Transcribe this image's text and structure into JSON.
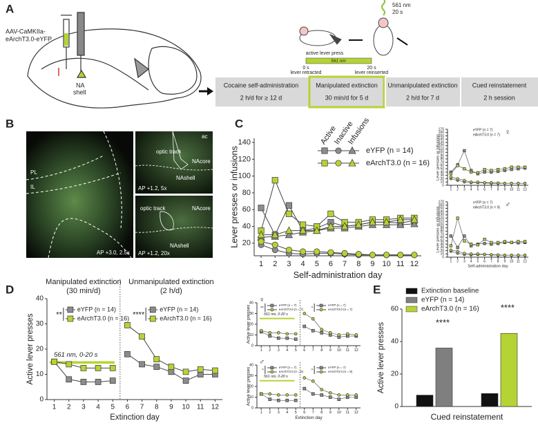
{
  "panel_labels": [
    "A",
    "B",
    "C",
    "D",
    "E"
  ],
  "panel_a": {
    "virus": [
      "AAV-CaMKIIa-",
      "eArchT3.0-eYFP"
    ],
    "target": [
      "NA",
      "shell"
    ],
    "laser": [
      "561 nm",
      "20 s"
    ],
    "active_press": "active lever press",
    "light_bar": "561 nm",
    "t0": "0 s",
    "t0_event": "lever retracted",
    "t20": "20 s",
    "t20_event": "lever reinserted",
    "stages": [
      {
        "name": "Cocaine self-administration",
        "detail": "2 h/d for ≥ 12 d"
      },
      {
        "name": "Manipulated extinction",
        "detail": "30 min/d for 5 d"
      },
      {
        "name": "Unmanipulated extinction",
        "detail": "2 h/d for 7 d"
      },
      {
        "name": "Cued reinstatement",
        "detail": "2 h session"
      }
    ]
  },
  "panel_b": {
    "images": [
      {
        "labels": [
          "PL",
          "IL"
        ],
        "caption": "AP +3.0, 2.5x"
      },
      {
        "labels": [
          "ac",
          "optic track",
          "NAcore",
          "NAshell"
        ],
        "caption": "AP +1.2, 5x"
      },
      {
        "labels": [
          "optic track",
          "NAcore",
          "NAshell"
        ],
        "caption": "AP +1.2, 20x"
      }
    ]
  },
  "chart_data": [
    {
      "type": "line",
      "xlabel": "Self-administration day",
      "ylabel": "Lever presses or infusions",
      "x": [
        1,
        2,
        3,
        4,
        5,
        6,
        7,
        8,
        9,
        10,
        11,
        12
      ],
      "xlim": [
        0.5,
        12.5
      ],
      "ylim": [
        5,
        145
      ],
      "yticks": [
        20,
        40,
        60,
        80,
        100,
        120,
        140
      ],
      "measures": [
        "Active",
        "Inactive",
        "Infusions"
      ],
      "markers": [
        "square",
        "circle",
        "triangle"
      ],
      "series": [
        {
          "name": "eYFP (n = 14)",
          "color": "#8c8c8c",
          "values": [
            [
              62,
              30,
              65,
              35,
              38,
              45,
              40,
              42,
              45,
              45,
              44,
              47
            ],
            [
              18,
              12,
              8,
              7,
              8,
              8,
              7,
              6,
              6,
              6,
              6,
              6
            ],
            [
              27,
              28,
              30,
              33,
              35,
              38,
              38,
              40,
              42,
              42,
              42,
              43
            ]
          ]
        },
        {
          "name": "eArchT3.0 (n = 16)",
          "color": "#b5d334",
          "values": [
            [
              35,
              95,
              55,
              42,
              40,
              55,
              45,
              45,
              48,
              48,
              50,
              50
            ],
            [
              22,
              18,
              12,
              10,
              10,
              9,
              8,
              7,
              6,
              6,
              6,
              6
            ],
            [
              30,
              30,
              35,
              35,
              35,
              40,
              40,
              42,
              45,
              45,
              48,
              48
            ]
          ]
        }
      ]
    },
    {
      "type": "line",
      "symbol": "♀",
      "ylabel": "Lever presses or infusions",
      "x": [
        1,
        2,
        3,
        4,
        5,
        6,
        7,
        8,
        9,
        10,
        11,
        12
      ],
      "xlim": [
        0.5,
        12.5
      ],
      "ylim": [
        0,
        170
      ],
      "yticks": [
        0,
        10,
        20,
        30,
        40,
        50,
        60,
        70,
        80,
        90,
        100,
        110,
        120,
        130,
        140,
        150,
        160,
        170
      ],
      "markers": [
        "square",
        "circle"
      ],
      "series": [
        {
          "name": "eYFP (n = 7)",
          "color": "#8c8c8c",
          "values": [
            [
              40,
              62,
              105,
              45,
              35,
              40,
              40,
              42,
              45,
              48,
              50,
              52
            ],
            [
              20,
              15,
              10,
              8,
              8,
              7,
              6,
              6,
              6,
              6,
              6,
              6
            ]
          ]
        },
        {
          "name": "eArchT3.0 (n = 7)",
          "color": "#b5d334",
          "values": [
            [
              35,
              60,
              50,
              40,
              38,
              48,
              45,
              48,
              50,
              55,
              55,
              55
            ],
            [
              25,
              20,
              15,
              10,
              10,
              8,
              8,
              7,
              6,
              6,
              6,
              6
            ]
          ]
        }
      ]
    },
    {
      "type": "line",
      "symbol": "♂",
      "xlabel": "Self-administration day",
      "ylabel": "Lever presses or infusions",
      "x": [
        1,
        2,
        3,
        4,
        5,
        6,
        7,
        8,
        9,
        10,
        11,
        12
      ],
      "xlim": [
        0.5,
        12.5
      ],
      "ylim": [
        0,
        170
      ],
      "yticks": [
        0,
        10,
        20,
        30,
        40,
        50,
        60,
        70,
        80,
        90,
        100,
        110,
        120,
        130,
        140,
        150,
        160,
        170
      ],
      "markers": [
        "square",
        "circle"
      ],
      "series": [
        {
          "name": "eYFP (n = 7)",
          "color": "#8c8c8c",
          "values": [
            [
              65,
              30,
              65,
              35,
              40,
              42,
              40,
              42,
              45,
              45,
              44,
              45
            ],
            [
              18,
              12,
              8,
              7,
              8,
              8,
              7,
              6,
              6,
              6,
              6,
              6
            ]
          ]
        },
        {
          "name": "eArchT3.0 (n = 9)",
          "color": "#b5d334",
          "values": [
            [
              35,
              120,
              50,
              40,
              38,
              55,
              45,
              45,
              48,
              45,
              48,
              48
            ],
            [
              22,
              18,
              12,
              10,
              10,
              9,
              8,
              7,
              6,
              6,
              6,
              6
            ]
          ]
        }
      ]
    },
    {
      "type": "line",
      "xlabel": "Extinction day",
      "ylabel": "Active lever presses",
      "xlim": [
        0.5,
        12.5
      ],
      "ylim": [
        0,
        40
      ],
      "yticks": [
        0,
        10,
        20,
        30,
        40
      ],
      "markers": [
        "square",
        "square"
      ],
      "parts": [
        {
          "title": "Manipulated extinction",
          "subtitle": "(30 min/d)",
          "annotation": "**",
          "light_label": "561 nm, 0-20 s",
          "x": [
            1,
            2,
            3,
            4,
            5
          ],
          "series": [
            {
              "name": "eYFP (n = 14)",
              "color": "#8c8c8c",
              "values": [
                15,
                8,
                7,
                7,
                7.5
              ]
            },
            {
              "name": "eArchT3.0 (n = 16)",
              "color": "#b5d334",
              "values": [
                15,
                14,
                12.5,
                12.5,
                12.5
              ]
            }
          ]
        },
        {
          "title": "Unmanipulated extinction",
          "subtitle": "(2 h/d)",
          "annotation": "****",
          "x": [
            6,
            7,
            8,
            9,
            10,
            11,
            12
          ],
          "series": [
            {
              "name": "eYFP (n = 14)",
              "color": "#8c8c8c",
              "values": [
                18,
                14,
                13,
                11,
                7.5,
                10,
                10
              ]
            },
            {
              "name": "eArchT3.0 (n = 16)",
              "color": "#b5d334",
              "values": [
                29.5,
                25,
                16,
                13,
                11,
                12,
                11.5
              ]
            }
          ]
        }
      ]
    },
    {
      "type": "line",
      "symbol": "♀",
      "ylabel": "Active lever presses",
      "xlim": [
        0.5,
        12.5
      ],
      "ylim": [
        0,
        40
      ],
      "yticks": [
        0,
        10,
        20,
        30,
        40
      ],
      "markers": [
        "square",
        "circle"
      ],
      "parts": [
        {
          "annotation": "**",
          "light_label": "561 nm, 0-20 s",
          "x": [
            1,
            2,
            3,
            4,
            5
          ],
          "series": [
            {
              "name": "eYFP (n = 7)",
              "color": "#8c8c8c",
              "values": [
                13,
                9,
                7,
                7,
                6
              ]
            },
            {
              "name": "eArchT3.0 (n = 7)",
              "color": "#b5d334",
              "values": [
                14,
                12,
                12,
                11,
                11
              ]
            }
          ]
        },
        {
          "annotation": "*",
          "x": [
            6,
            7,
            8,
            9,
            10,
            11,
            12
          ],
          "series": [
            {
              "name": "eYFP (n = 7)",
              "color": "#8c8c8c",
              "values": [
                18,
                14,
                12,
                10,
                8,
                9,
                9
              ]
            },
            {
              "name": "eArchT3.0 (n = 7)",
              "color": "#b5d334",
              "values": [
                30,
                25,
                15,
                12,
                10,
                11,
                10
              ]
            }
          ]
        }
      ]
    },
    {
      "type": "line",
      "symbol": "♂",
      "xlabel": "Extinction day",
      "ylabel": "Active lever presses",
      "xlim": [
        0.5,
        12.5
      ],
      "ylim": [
        0,
        40
      ],
      "yticks": [
        0,
        10,
        20,
        30,
        40
      ],
      "markers": [
        "square",
        "circle"
      ],
      "parts": [
        {
          "annotation": "*",
          "light_label": "561 nm, 0-20 s",
          "x": [
            1,
            2,
            3,
            4,
            5
          ],
          "series": [
            {
              "name": "eYFP (n = 7)",
              "color": "#8c8c8c",
              "values": [
                13,
                8,
                7,
                7,
                7
              ]
            },
            {
              "name": "eArchT3.0 (n = 9)",
              "color": "#b5d334",
              "values": [
                13,
                13,
                12,
                12,
                12
              ]
            }
          ]
        },
        {
          "annotation": "*",
          "x": [
            6,
            7,
            8,
            9,
            10,
            11,
            12
          ],
          "series": [
            {
              "name": "eYFP (n = 7)",
              "color": "#8c8c8c",
              "values": [
                18,
                13,
                12,
                10,
                8,
                10,
                10
              ]
            },
            {
              "name": "eArchT3.0 (n = 9)",
              "color": "#b5d334",
              "values": [
                28,
                25,
                17,
                14,
                12,
                12,
                12
              ]
            }
          ]
        }
      ]
    },
    {
      "type": "bar",
      "xlabel": "Cued reinstatement",
      "ylabel": "Active lever presses",
      "ylim": [
        0,
        60
      ],
      "yticks": [
        0,
        20,
        40,
        60
      ],
      "categories": [
        null,
        null
      ],
      "series": [
        {
          "name": "Extinction baseline",
          "color": "#111111",
          "values": [
            7,
            8
          ]
        },
        {
          "name": "eYFP (n = 14)",
          "color": "#7f7f7f",
          "values": [
            36,
            null
          ]
        },
        {
          "name": "eArchT3.0 (n = 16)",
          "color": "#b5d334",
          "values": [
            null,
            45
          ]
        }
      ],
      "annotations": [
        "****",
        "****"
      ]
    }
  ]
}
